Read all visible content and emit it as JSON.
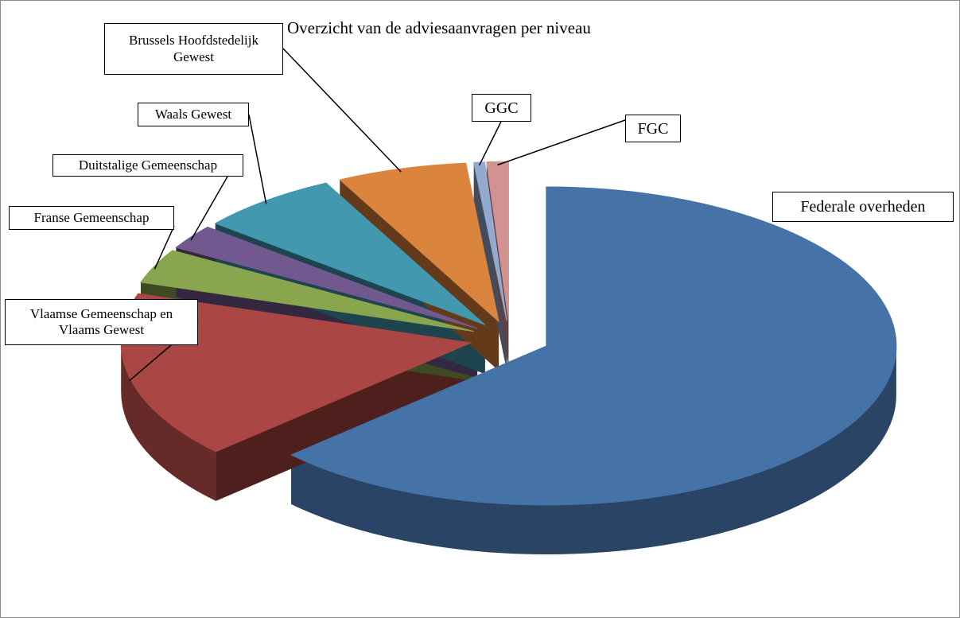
{
  "chart_data": {
    "type": "pie3d",
    "title": "Overzicht van de adviesaanvragen per niveau",
    "categories": [
      "Federale overheden",
      "Vlaamse Gemeenschap en Vlaams Gewest",
      "Franse Gemeenschap",
      "Duitstalige Gemeenschap",
      "Waals Gewest",
      "Brussels Hoofdstedelijk Gewest",
      "GGC",
      "FGC"
    ],
    "values": [
      63,
      17,
      3.5,
      2.5,
      6.5,
      6,
      0.5,
      1
    ],
    "colors": [
      "#4572a7",
      "#aa4643",
      "#89a54e",
      "#71588f",
      "#4198af",
      "#db843d",
      "#93a9cf",
      "#d19392"
    ]
  }
}
